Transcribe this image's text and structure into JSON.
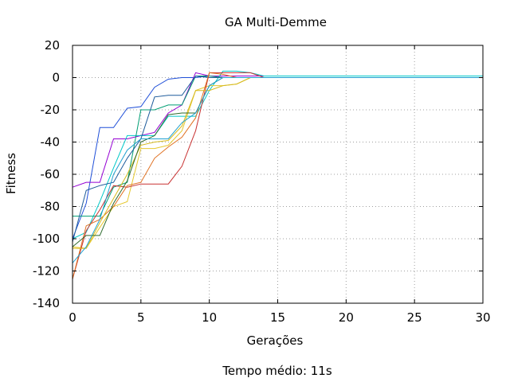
{
  "chart_data": {
    "type": "line",
    "title": "GA Multi-Demme",
    "xlabel": "Gerações",
    "ylabel": "Fitness",
    "footer": "Tempo médio: 11s",
    "xlim": [
      0,
      30
    ],
    "ylim": [
      -140,
      20
    ],
    "xticks": [
      "0",
      "5",
      "10",
      "15",
      "20",
      "25",
      "30"
    ],
    "yticks": [
      "20",
      "0",
      "-20",
      "-40",
      "-60",
      "-80",
      "-100",
      "-120",
      "-140"
    ],
    "grid": true,
    "legend": "none",
    "series": [
      {
        "color": "#1f4fd8",
        "points": [
          [
            0,
            -100
          ],
          [
            1,
            -78
          ],
          [
            2,
            -31
          ],
          [
            3,
            -31
          ],
          [
            4,
            -19
          ],
          [
            5,
            -18
          ],
          [
            6,
            -6
          ],
          [
            7,
            -1
          ],
          [
            8,
            0
          ],
          [
            9,
            0
          ],
          [
            10,
            1
          ],
          [
            11,
            1
          ],
          [
            12,
            1
          ],
          [
            13,
            1
          ],
          [
            14,
            1
          ],
          [
            15,
            1
          ],
          [
            16,
            1
          ],
          [
            30,
            1
          ]
        ]
      },
      {
        "color": "#9400d3",
        "points": [
          [
            0,
            -68
          ],
          [
            1,
            -65
          ],
          [
            2,
            -65
          ],
          [
            3,
            -38
          ],
          [
            4,
            -38
          ],
          [
            5,
            -36
          ],
          [
            6,
            -34
          ],
          [
            7,
            -22
          ],
          [
            8,
            -17
          ],
          [
            9,
            3
          ],
          [
            10,
            1
          ],
          [
            11,
            1
          ],
          [
            12,
            1
          ],
          [
            13,
            1
          ],
          [
            30,
            1
          ]
        ]
      },
      {
        "color": "#00c8c8",
        "points": [
          [
            0,
            -100
          ],
          [
            1,
            -96
          ],
          [
            2,
            -77
          ],
          [
            3,
            -56
          ],
          [
            4,
            -36
          ],
          [
            5,
            -36
          ],
          [
            6,
            -36
          ],
          [
            7,
            -24
          ],
          [
            8,
            -24
          ],
          [
            9,
            -24
          ],
          [
            10,
            -8
          ],
          [
            11,
            4
          ],
          [
            12,
            4
          ],
          [
            13,
            3
          ],
          [
            14,
            1
          ],
          [
            30,
            1
          ]
        ]
      },
      {
        "color": "#009e73",
        "points": [
          [
            0,
            -86
          ],
          [
            1,
            -86
          ],
          [
            2,
            -86
          ],
          [
            3,
            -68
          ],
          [
            4,
            -65
          ],
          [
            5,
            -20
          ],
          [
            6,
            -20
          ],
          [
            7,
            -17
          ],
          [
            8,
            -17
          ],
          [
            9,
            1
          ],
          [
            10,
            1
          ],
          [
            11,
            0
          ],
          [
            12,
            0
          ],
          [
            13,
            0
          ],
          [
            30,
            0
          ]
        ]
      },
      {
        "color": "#1c5a9a",
        "points": [
          [
            0,
            -102
          ],
          [
            1,
            -70
          ],
          [
            2,
            -67
          ],
          [
            3,
            -65
          ],
          [
            4,
            -50
          ],
          [
            5,
            -38
          ],
          [
            6,
            -12
          ],
          [
            7,
            -11
          ],
          [
            8,
            -11
          ],
          [
            9,
            1
          ],
          [
            10,
            0
          ],
          [
            11,
            0
          ],
          [
            30,
            0
          ]
        ]
      },
      {
        "color": "#e6c82e",
        "points": [
          [
            0,
            -105
          ],
          [
            1,
            -106
          ],
          [
            2,
            -93
          ],
          [
            3,
            -80
          ],
          [
            4,
            -77
          ],
          [
            5,
            -44
          ],
          [
            6,
            -44
          ],
          [
            7,
            -42
          ],
          [
            8,
            -33
          ],
          [
            9,
            -8
          ],
          [
            10,
            -5
          ],
          [
            11,
            -5
          ],
          [
            12,
            -4
          ],
          [
            13,
            0
          ],
          [
            14,
            0
          ],
          [
            30,
            0
          ]
        ]
      },
      {
        "color": "#c83232",
        "points": [
          [
            0,
            -125
          ],
          [
            1,
            -95
          ],
          [
            2,
            -82
          ],
          [
            3,
            -67
          ],
          [
            4,
            -68
          ],
          [
            5,
            -66
          ],
          [
            6,
            -66
          ],
          [
            7,
            -66
          ],
          [
            8,
            -55
          ],
          [
            9,
            -33
          ],
          [
            10,
            3
          ],
          [
            11,
            3
          ],
          [
            12,
            3
          ],
          [
            13,
            3
          ],
          [
            14,
            0
          ],
          [
            30,
            0
          ]
        ]
      },
      {
        "color": "#e07020",
        "points": [
          [
            0,
            -125
          ],
          [
            1,
            -92
          ],
          [
            2,
            -88
          ],
          [
            3,
            -80
          ],
          [
            4,
            -67
          ],
          [
            5,
            -65
          ],
          [
            6,
            -50
          ],
          [
            7,
            -43
          ],
          [
            8,
            -37
          ],
          [
            9,
            -25
          ],
          [
            10,
            3
          ],
          [
            11,
            2
          ],
          [
            12,
            0
          ],
          [
            30,
            0
          ]
        ]
      },
      {
        "color": "#d6ba1e",
        "points": [
          [
            0,
            -106
          ],
          [
            1,
            -106
          ],
          [
            2,
            -90
          ],
          [
            3,
            -75
          ],
          [
            4,
            -60
          ],
          [
            5,
            -42
          ],
          [
            6,
            -40
          ],
          [
            7,
            -39
          ],
          [
            8,
            -30
          ],
          [
            9,
            -8
          ],
          [
            10,
            -8
          ],
          [
            11,
            -5
          ],
          [
            12,
            -4
          ],
          [
            13,
            0
          ],
          [
            30,
            0
          ]
        ]
      },
      {
        "color": "#2e6b2e",
        "points": [
          [
            0,
            -105
          ],
          [
            1,
            -98
          ],
          [
            2,
            -98
          ],
          [
            3,
            -78
          ],
          [
            4,
            -64
          ],
          [
            5,
            -40
          ],
          [
            6,
            -36
          ],
          [
            7,
            -23
          ],
          [
            8,
            -22
          ],
          [
            9,
            -22
          ],
          [
            10,
            -5
          ],
          [
            11,
            0
          ],
          [
            30,
            0
          ]
        ]
      },
      {
        "color": "#20a0d0",
        "points": [
          [
            0,
            -115
          ],
          [
            1,
            -105
          ],
          [
            2,
            -88
          ],
          [
            3,
            -60
          ],
          [
            4,
            -45
          ],
          [
            5,
            -38
          ],
          [
            6,
            -38
          ],
          [
            7,
            -38
          ],
          [
            8,
            -28
          ],
          [
            9,
            -22
          ],
          [
            10,
            -5
          ],
          [
            11,
            0
          ],
          [
            30,
            0
          ]
        ]
      }
    ]
  }
}
